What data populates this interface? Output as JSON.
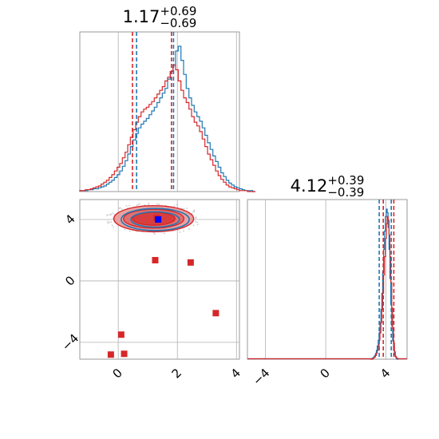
{
  "chart_data": [
    {
      "type": "histogram",
      "panel": "top-left",
      "title": {
        "value": "1.17",
        "plus": "+0.69",
        "minus": "−0.69"
      },
      "xlim": [
        -1.3,
        4.1
      ],
      "ticks": [
        0,
        2,
        4
      ],
      "grid": true,
      "series": [
        {
          "color": "#1f77b4",
          "bin_start": -1.3,
          "bin_width": 0.09,
          "counts": [
            1,
            1,
            1,
            2,
            2,
            3,
            3,
            4,
            5,
            6,
            8,
            10,
            12,
            15,
            18,
            22,
            27,
            33,
            40,
            48,
            55,
            62,
            68,
            72,
            75,
            78,
            82,
            86,
            90,
            95,
            100,
            105,
            110,
            120,
            128,
            135,
            150,
            155,
            140,
            125,
            110,
            100,
            92,
            85,
            80,
            75,
            68,
            60,
            52,
            45,
            38,
            32,
            26,
            20,
            16,
            12,
            9,
            7,
            5,
            4,
            3,
            2,
            1,
            1,
            1,
            0
          ],
          "quantile_lines": [
            0.62,
            1.87
          ]
        },
        {
          "color": "#d62728",
          "bin_start": -1.3,
          "bin_width": 0.09,
          "counts": [
            1,
            1,
            2,
            2,
            3,
            4,
            5,
            6,
            8,
            10,
            12,
            15,
            18,
            22,
            26,
            30,
            36,
            42,
            50,
            58,
            66,
            74,
            80,
            85,
            88,
            90,
            93,
            96,
            100,
            104,
            108,
            112,
            118,
            122,
            128,
            135,
            130,
            118,
            108,
            100,
            95,
            88,
            80,
            74,
            70,
            64,
            56,
            48,
            40,
            34,
            28,
            22,
            17,
            13,
            10,
            7,
            5,
            4,
            3,
            2,
            1,
            1,
            1,
            0,
            0,
            0
          ],
          "quantile_lines": [
            0.48,
            1.8
          ]
        }
      ]
    },
    {
      "type": "histogram",
      "panel": "bottom-right",
      "title": {
        "value": "4.12",
        "plus": "+0.39",
        "minus": "−0.39"
      },
      "xlim": [
        -5.2,
        5.4
      ],
      "ticks": [
        -4,
        0,
        4
      ],
      "tick_labels": [
        "−4",
        "0",
        "4"
      ],
      "grid": true,
      "series": [
        {
          "color": "#1f77b4",
          "bin_start": 3.0,
          "bin_width": 0.06,
          "counts": [
            0,
            1,
            2,
            3,
            5,
            8,
            12,
            18,
            26,
            36,
            50,
            68,
            90,
            120,
            150,
            175,
            195,
            205,
            200,
            180,
            150,
            110,
            75,
            45,
            25,
            12,
            6,
            3,
            1,
            0
          ],
          "quantile_lines": [
            3.55,
            4.35
          ]
        },
        {
          "color": "#d62728",
          "bin_start": 3.0,
          "bin_width": 0.06,
          "counts": [
            0,
            0,
            1,
            2,
            3,
            5,
            8,
            12,
            18,
            26,
            36,
            50,
            68,
            90,
            115,
            140,
            165,
            185,
            195,
            190,
            170,
            140,
            105,
            70,
            42,
            22,
            10,
            4,
            2,
            1
          ],
          "quantile_lines": [
            3.82,
            4.52
          ]
        }
      ]
    },
    {
      "type": "scatter",
      "panel": "bottom-left",
      "xlim": [
        -1.3,
        4.1
      ],
      "ylim": [
        -5.1,
        5.3
      ],
      "xticks": [
        0,
        2,
        4
      ],
      "yticks": [
        4,
        0,
        -4
      ],
      "ytick_labels": [
        "4",
        "0",
        "−4"
      ],
      "grid": true,
      "contours": {
        "center": [
          1.2,
          4.05
        ],
        "levels": [
          {
            "rx": 1.35,
            "ry": 0.85,
            "fill": "#e9a2a2",
            "stroke": "#d62728"
          },
          {
            "rx": 1.02,
            "ry": 0.62,
            "fill": "#e07070",
            "stroke": "#d62728"
          },
          {
            "rx": 0.72,
            "ry": 0.42,
            "fill": "#d83e3e",
            "stroke": "#d62728"
          }
        ],
        "blue_levels": [
          {
            "rx": 1.15,
            "ry": 0.72
          },
          {
            "rx": 0.82,
            "ry": 0.5
          }
        ]
      },
      "red_squares": [
        [
          1.3,
          4.1
        ],
        [
          1.25,
          1.35
        ],
        [
          2.45,
          1.2
        ],
        [
          3.3,
          -2.1
        ],
        [
          0.1,
          -3.5
        ],
        [
          0.2,
          -4.75
        ],
        [
          -0.25,
          -4.8
        ]
      ],
      "blue_square": [
        1.35,
        4.0
      ],
      "colors": {
        "red": "#d62728",
        "blue": "#0000ff"
      }
    }
  ]
}
